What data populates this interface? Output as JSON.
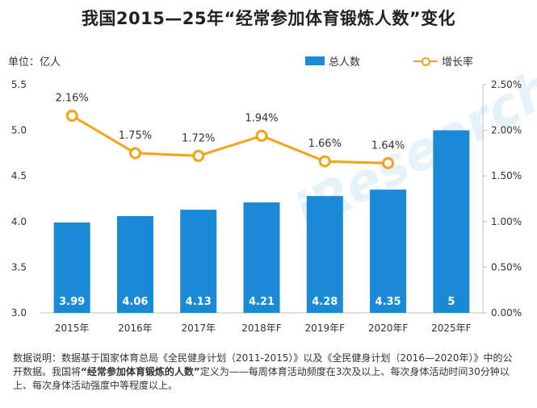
{
  "title": "我国2015—25年“经常参加体育锻炼人数”变化",
  "unit_label": "单位：亿人",
  "legend": {
    "bar": "总人数",
    "line": "增长率"
  },
  "colors": {
    "bar": "#1b8ad6",
    "line": "#f5a21b"
  },
  "note": {
    "prefix": "数据说明：数据基于国家体育总局《全民健身计划（2011-2015）》以及《全民健身计划（2016—2020年）》中的公开数据。我国将",
    "highlight": "“经常参加体育锻炼的人数”",
    "suffix": "定义为——每周体育活动频度在3次及以上、每次身体活动时间30分钟以上、每次身体活动强度中等程度以上。"
  },
  "watermark": "iResearch",
  "chart_data": {
    "type": "bar",
    "categories": [
      "2015年",
      "2016年",
      "2017年",
      "2018年F",
      "2019年F",
      "2020年F",
      "2025年F"
    ],
    "series": [
      {
        "name": "总人数",
        "type": "bar",
        "axis": "left",
        "values": [
          3.99,
          4.06,
          4.13,
          4.21,
          4.28,
          4.35,
          5
        ],
        "labels": [
          "3.99",
          "4.06",
          "4.13",
          "4.21",
          "4.28",
          "4.35",
          "5"
        ]
      },
      {
        "name": "增长率",
        "type": "line",
        "axis": "right",
        "values": [
          0.0216,
          0.0175,
          0.0172,
          0.0194,
          0.0166,
          0.0164,
          null
        ],
        "labels": [
          "2.16%",
          "1.75%",
          "1.72%",
          "1.94%",
          "1.66%",
          "1.64%",
          ""
        ]
      }
    ],
    "y_left": {
      "min": 3.0,
      "max": 5.5,
      "ticks": [
        "3.0",
        "3.5",
        "4.0",
        "4.5",
        "5.0",
        "5.5"
      ]
    },
    "y_right": {
      "min": 0,
      "max": 0.025,
      "ticks": [
        "0.00%",
        "0.50%",
        "1.00%",
        "1.50%",
        "2.00%",
        "2.50%"
      ]
    },
    "grid": false
  }
}
